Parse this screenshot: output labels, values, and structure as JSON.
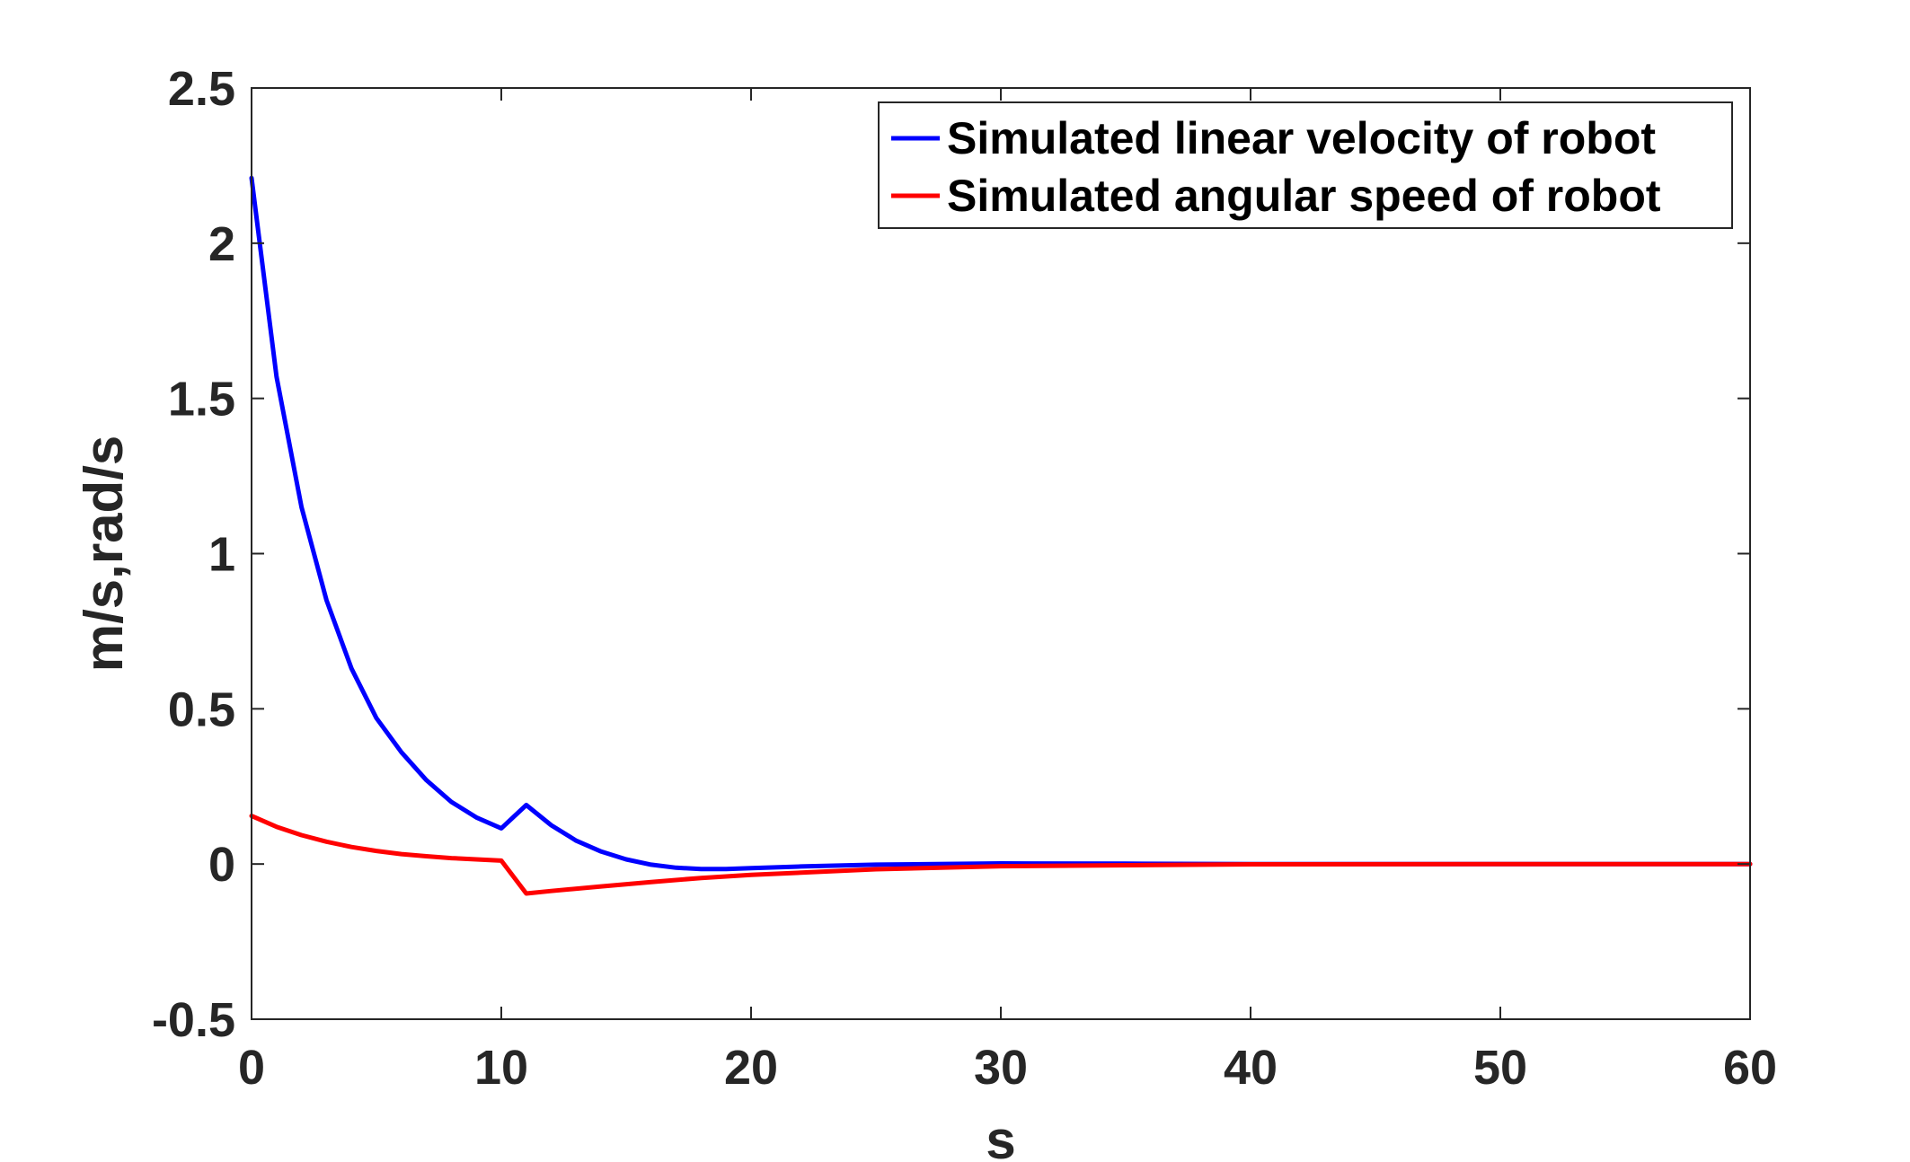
{
  "chart_data": {
    "type": "line",
    "title": "",
    "xlabel": "s",
    "ylabel": "m/s,rad/s",
    "xlim": [
      0,
      60
    ],
    "ylim": [
      -0.5,
      2.5
    ],
    "xticks": [
      0,
      10,
      20,
      30,
      40,
      50,
      60
    ],
    "xtick_labels": [
      "0",
      "10",
      "20",
      "30",
      "40",
      "50",
      "60"
    ],
    "yticks": [
      -0.5,
      0,
      0.5,
      1,
      1.5,
      2,
      2.5
    ],
    "ytick_labels": [
      "-0.5",
      "0",
      "0.5",
      "1",
      "1.5",
      "2",
      "2.5"
    ],
    "grid": false,
    "legend_position": "top-right",
    "series": [
      {
        "name": "Simulated linear velocity of robot",
        "color": "#0000ff",
        "x": [
          0,
          1,
          2,
          3,
          4,
          5,
          6,
          7,
          8,
          9,
          10,
          11,
          12,
          13,
          14,
          15,
          16,
          17,
          18,
          19,
          20,
          22,
          25,
          30,
          35,
          40,
          50,
          60
        ],
        "y": [
          2.21,
          1.57,
          1.15,
          0.85,
          0.63,
          0.47,
          0.36,
          0.27,
          0.2,
          0.15,
          0.115,
          0.19,
          0.125,
          0.075,
          0.04,
          0.015,
          -0.002,
          -0.012,
          -0.016,
          -0.016,
          -0.013,
          -0.008,
          -0.002,
          0.002,
          0.001,
          0.0,
          0.0,
          0.0
        ]
      },
      {
        "name": "Simulated angular speed of robot",
        "color": "#ff0000",
        "x": [
          0,
          1,
          2,
          3,
          4,
          5,
          6,
          7,
          8,
          9,
          10,
          11,
          12,
          14,
          16,
          18,
          20,
          25,
          30,
          40,
          50,
          60
        ],
        "y": [
          0.155,
          0.12,
          0.093,
          0.072,
          0.055,
          0.042,
          0.032,
          0.025,
          0.019,
          0.015,
          0.011,
          -0.095,
          -0.087,
          -0.072,
          -0.058,
          -0.045,
          -0.035,
          -0.017,
          -0.007,
          -0.001,
          0.0,
          0.0
        ]
      }
    ]
  }
}
